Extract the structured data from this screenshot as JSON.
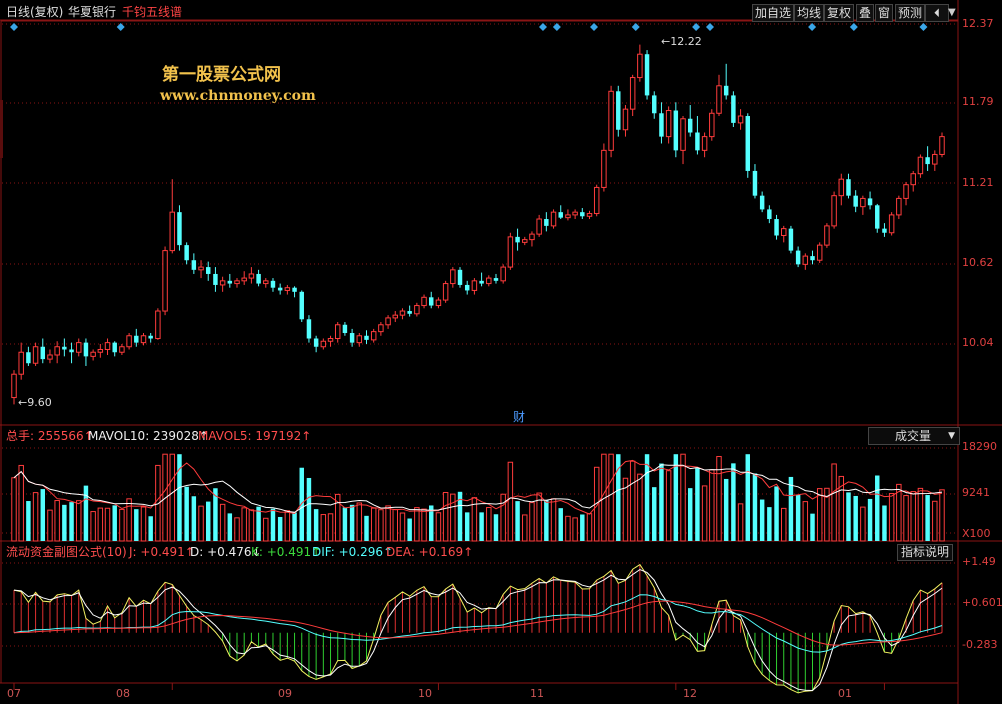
{
  "header": {
    "period": "日线(复权)",
    "stock_name": "华夏银行",
    "indicator": "千钧五线谱",
    "buttons": [
      "加自选",
      "均线",
      "复权",
      "叠",
      "窗",
      "预测"
    ],
    "nav_icon": "chevron-left-bar-icon",
    "menu_icon": "dropdown-arrow-icon"
  },
  "watermark": {
    "line1": "第一股票公式网",
    "line2": "www.chnmoney.com"
  },
  "price_axis": [
    "12.37",
    "11.79",
    "11.21",
    "10.62",
    "10.04"
  ],
  "markers": {
    "high_label": "12.22",
    "low_label": "9.60",
    "finance_label": "财"
  },
  "volume_panel": {
    "total_label": "总手: 255566↑",
    "mavol10_label": "MAVOL10: 239028↑",
    "mavol5_label": "MAVOL5: 197192↑",
    "selector": "成交量",
    "axis": [
      "18290",
      "9241",
      "X100"
    ]
  },
  "indicator_panel": {
    "title": "流动资金副图公式(10)",
    "j": "J: +0.491↑",
    "d": "D: +0.476↓",
    "k": "K: +0.491↑",
    "dif": "DIF: +0.296↑",
    "dea": "DEA: +0.169↑",
    "help_button": "指标说明",
    "axis": [
      "+1.49",
      "+0.601",
      "-0.283"
    ]
  },
  "time_axis": [
    "07",
    "08",
    "09",
    "10",
    "11",
    "12",
    "01"
  ],
  "colors": {
    "up": "#ff3c3c",
    "down": "#54ffff",
    "grid": "#8a1515",
    "axis_text": "#e04040",
    "watermark": "#f2c24c"
  },
  "chart_data": {
    "type": "candlestick",
    "price_ylim": [
      9.5,
      12.45
    ],
    "ohlc": [
      [
        9.65,
        9.85,
        9.6,
        9.82
      ],
      [
        9.82,
        10.05,
        9.78,
        9.98
      ],
      [
        9.98,
        10.02,
        9.88,
        9.9
      ],
      [
        9.9,
        10.05,
        9.88,
        10.02
      ],
      [
        10.02,
        10.08,
        9.9,
        9.93
      ],
      [
        9.93,
        10.0,
        9.9,
        9.96
      ],
      [
        9.96,
        10.06,
        9.9,
        10.02
      ],
      [
        10.02,
        10.08,
        9.95,
        10.0
      ],
      [
        10.0,
        10.05,
        9.9,
        9.98
      ],
      [
        9.98,
        10.08,
        9.95,
        10.05
      ],
      [
        10.05,
        10.08,
        9.88,
        9.95
      ],
      [
        9.95,
        10.0,
        9.92,
        9.98
      ],
      [
        9.98,
        10.04,
        9.94,
        10.0
      ],
      [
        10.0,
        10.08,
        9.96,
        10.05
      ],
      [
        10.05,
        10.06,
        9.95,
        9.98
      ],
      [
        9.98,
        10.04,
        9.96,
        10.02
      ],
      [
        10.02,
        10.12,
        10.0,
        10.1
      ],
      [
        10.1,
        10.15,
        10.02,
        10.05
      ],
      [
        10.05,
        10.12,
        10.03,
        10.1
      ],
      [
        10.1,
        10.12,
        10.05,
        10.08
      ],
      [
        10.08,
        10.3,
        10.07,
        10.28
      ],
      [
        10.28,
        10.75,
        10.25,
        10.72
      ],
      [
        10.72,
        11.24,
        10.7,
        11.0
      ],
      [
        11.0,
        11.05,
        10.72,
        10.76
      ],
      [
        10.76,
        10.78,
        10.62,
        10.65
      ],
      [
        10.65,
        10.7,
        10.55,
        10.58
      ],
      [
        10.58,
        10.65,
        10.52,
        10.6
      ],
      [
        10.6,
        10.64,
        10.5,
        10.55
      ],
      [
        10.55,
        10.6,
        10.42,
        10.47
      ],
      [
        10.47,
        10.53,
        10.42,
        10.5
      ],
      [
        10.5,
        10.55,
        10.45,
        10.48
      ],
      [
        10.48,
        10.52,
        10.45,
        10.5
      ],
      [
        10.5,
        10.57,
        10.47,
        10.52
      ],
      [
        10.52,
        10.6,
        10.48,
        10.55
      ],
      [
        10.55,
        10.58,
        10.46,
        10.48
      ],
      [
        10.48,
        10.52,
        10.45,
        10.5
      ],
      [
        10.5,
        10.52,
        10.42,
        10.45
      ],
      [
        10.45,
        10.48,
        10.4,
        10.43
      ],
      [
        10.43,
        10.47,
        10.4,
        10.45
      ],
      [
        10.45,
        10.46,
        10.38,
        10.42
      ],
      [
        10.42,
        10.43,
        10.2,
        10.22
      ],
      [
        10.22,
        10.25,
        10.05,
        10.08
      ],
      [
        10.08,
        10.1,
        9.98,
        10.02
      ],
      [
        10.02,
        10.08,
        10.0,
        10.06
      ],
      [
        10.06,
        10.1,
        10.02,
        10.08
      ],
      [
        10.08,
        10.2,
        10.05,
        10.18
      ],
      [
        10.18,
        10.2,
        10.1,
        10.12
      ],
      [
        10.12,
        10.15,
        10.02,
        10.05
      ],
      [
        10.05,
        10.12,
        10.02,
        10.1
      ],
      [
        10.1,
        10.14,
        10.04,
        10.07
      ],
      [
        10.07,
        10.15,
        10.05,
        10.13
      ],
      [
        10.13,
        10.2,
        10.1,
        10.18
      ],
      [
        10.18,
        10.25,
        10.15,
        10.23
      ],
      [
        10.23,
        10.28,
        10.2,
        10.25
      ],
      [
        10.25,
        10.3,
        10.22,
        10.28
      ],
      [
        10.28,
        10.32,
        10.24,
        10.26
      ],
      [
        10.26,
        10.34,
        10.24,
        10.32
      ],
      [
        10.32,
        10.4,
        10.3,
        10.38
      ],
      [
        10.38,
        10.42,
        10.3,
        10.32
      ],
      [
        10.32,
        10.38,
        10.3,
        10.36
      ],
      [
        10.36,
        10.5,
        10.34,
        10.48
      ],
      [
        10.48,
        10.6,
        10.45,
        10.58
      ],
      [
        10.58,
        10.6,
        10.45,
        10.47
      ],
      [
        10.47,
        10.5,
        10.4,
        10.43
      ],
      [
        10.43,
        10.52,
        10.4,
        10.5
      ],
      [
        10.5,
        10.56,
        10.46,
        10.48
      ],
      [
        10.48,
        10.54,
        10.46,
        10.52
      ],
      [
        10.52,
        10.55,
        10.48,
        10.5
      ],
      [
        10.5,
        10.62,
        10.48,
        10.6
      ],
      [
        10.6,
        10.85,
        10.58,
        10.82
      ],
      [
        10.82,
        10.88,
        10.72,
        10.78
      ],
      [
        10.78,
        10.82,
        10.76,
        10.8
      ],
      [
        10.8,
        10.86,
        10.75,
        10.84
      ],
      [
        10.84,
        10.98,
        10.82,
        10.95
      ],
      [
        10.95,
        11.0,
        10.86,
        10.9
      ],
      [
        10.9,
        11.02,
        10.88,
        11.0
      ],
      [
        11.0,
        11.05,
        10.95,
        10.96
      ],
      [
        10.96,
        11.02,
        10.94,
        10.98
      ],
      [
        10.98,
        11.02,
        10.95,
        11.0
      ],
      [
        11.0,
        11.03,
        10.95,
        10.97
      ],
      [
        10.97,
        11.01,
        10.95,
        10.99
      ],
      [
        10.99,
        11.2,
        10.97,
        11.18
      ],
      [
        11.18,
        11.5,
        11.15,
        11.45
      ],
      [
        11.45,
        11.92,
        11.4,
        11.88
      ],
      [
        11.88,
        11.92,
        11.55,
        11.6
      ],
      [
        11.6,
        11.78,
        11.55,
        11.75
      ],
      [
        11.75,
        12.0,
        11.7,
        11.98
      ],
      [
        11.98,
        12.22,
        11.95,
        12.15
      ],
      [
        12.15,
        12.18,
        11.82,
        11.85
      ],
      [
        11.85,
        11.88,
        11.68,
        11.72
      ],
      [
        11.72,
        11.8,
        11.5,
        11.55
      ],
      [
        11.55,
        11.77,
        11.5,
        11.74
      ],
      [
        11.74,
        11.8,
        11.4,
        11.45
      ],
      [
        11.45,
        11.7,
        11.35,
        11.68
      ],
      [
        11.68,
        11.78,
        11.55,
        11.58
      ],
      [
        11.58,
        11.7,
        11.42,
        11.45
      ],
      [
        11.45,
        11.58,
        11.4,
        11.55
      ],
      [
        11.55,
        11.75,
        11.52,
        11.72
      ],
      [
        11.72,
        12.0,
        11.7,
        11.92
      ],
      [
        11.92,
        12.08,
        11.82,
        11.85
      ],
      [
        11.85,
        11.88,
        11.62,
        11.65
      ],
      [
        11.65,
        11.75,
        11.6,
        11.7
      ],
      [
        11.7,
        11.72,
        11.25,
        11.3
      ],
      [
        11.3,
        11.35,
        11.1,
        11.12
      ],
      [
        11.12,
        11.15,
        11.0,
        11.02
      ],
      [
        11.02,
        11.05,
        10.92,
        10.95
      ],
      [
        10.95,
        10.98,
        10.8,
        10.83
      ],
      [
        10.83,
        10.9,
        10.78,
        10.88
      ],
      [
        10.88,
        10.9,
        10.7,
        10.72
      ],
      [
        10.72,
        10.75,
        10.6,
        10.62
      ],
      [
        10.62,
        10.7,
        10.58,
        10.68
      ],
      [
        10.68,
        10.72,
        10.62,
        10.65
      ],
      [
        10.65,
        10.78,
        10.63,
        10.76
      ],
      [
        10.76,
        10.92,
        10.74,
        10.9
      ],
      [
        10.9,
        11.15,
        10.88,
        11.12
      ],
      [
        11.12,
        11.28,
        11.05,
        11.24
      ],
      [
        11.24,
        11.28,
        11.1,
        11.12
      ],
      [
        11.12,
        11.16,
        11.0,
        11.04
      ],
      [
        11.04,
        11.12,
        10.98,
        11.1
      ],
      [
        11.1,
        11.15,
        11.02,
        11.05
      ],
      [
        11.05,
        11.06,
        10.85,
        10.88
      ],
      [
        10.88,
        10.92,
        10.82,
        10.85
      ],
      [
        10.85,
        11.0,
        10.83,
        10.98
      ],
      [
        10.98,
        11.12,
        10.95,
        11.1
      ],
      [
        11.1,
        11.22,
        11.05,
        11.2
      ],
      [
        11.2,
        11.3,
        11.15,
        11.28
      ],
      [
        11.28,
        11.42,
        11.25,
        11.4
      ],
      [
        11.4,
        11.48,
        11.3,
        11.35
      ],
      [
        11.35,
        11.45,
        11.3,
        11.42
      ],
      [
        11.42,
        11.58,
        11.4,
        11.55
      ]
    ],
    "volume_ylim": [
      0,
      19500
    ],
    "indicator_ylim": [
      -0.5,
      1.6
    ],
    "x_ticks": [
      "07",
      "08",
      "09",
      "10",
      "11",
      "12",
      "01"
    ],
    "x_tick_bars": [
      0,
      22,
      59,
      92,
      121,
      151,
      186
    ]
  }
}
